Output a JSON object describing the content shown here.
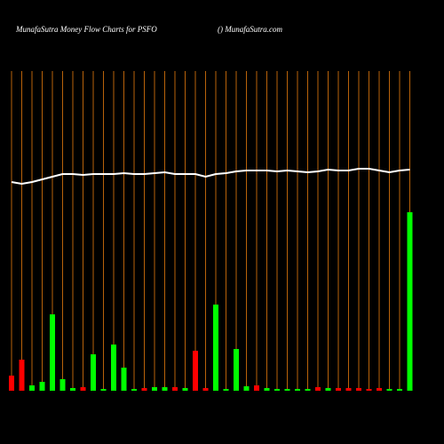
{
  "chart_data": {
    "type": "bar",
    "title": "MunafaSutra  Money Flow  Charts for PSFO",
    "subtitle": "() MunafaSutra.com",
    "ylim": [
      0,
      360
    ],
    "series": [
      {
        "colors": [
          "#ff0000",
          "#ff0000",
          "#00ff00",
          "#00ff00",
          "#00ff00",
          "#00ff00",
          "#00ff00",
          "#ff0000",
          "#00ff00",
          "#00ff00",
          "#00ff00",
          "#00ff00",
          "#00ff00",
          "#ff0000",
          "#00ff00",
          "#00ff00",
          "#ff0000",
          "#00ff00",
          "#ff0000",
          "#ff0000",
          "#00ff00",
          "#00ff00",
          "#00ff00",
          "#00ff00",
          "#ff0000",
          "#00ff00",
          "#00ff00",
          "#00ff00",
          "#00ff00",
          "#00ff00",
          "#ff0000",
          "#00ff00",
          "#ff0000",
          "#ff0000",
          "#ff0000",
          "#ff0000",
          "#ff0000",
          "#00ff00",
          "#00ff00",
          "#00ff00"
        ],
        "values": [
          17,
          35,
          6,
          10,
          86,
          13,
          3,
          4,
          41,
          2,
          52,
          26,
          2,
          3,
          4,
          4,
          4,
          3,
          45,
          3,
          97,
          2,
          47,
          5,
          6,
          3,
          2,
          2,
          2,
          2,
          4,
          3,
          3,
          3,
          3,
          2,
          3,
          2,
          2,
          201
        ]
      },
      {
        "type": "line",
        "color": "#ffffff",
        "values": [
          235,
          233,
          235,
          238,
          241,
          244,
          244,
          243,
          244,
          244,
          244,
          245,
          244,
          244,
          245,
          246,
          244,
          244,
          244,
          241,
          244,
          245,
          247,
          248,
          248,
          248,
          247,
          248,
          247,
          246,
          247,
          249,
          248,
          248,
          250,
          250,
          248,
          246,
          248,
          249
        ]
      }
    ],
    "gridline_color": "#b8620a"
  }
}
